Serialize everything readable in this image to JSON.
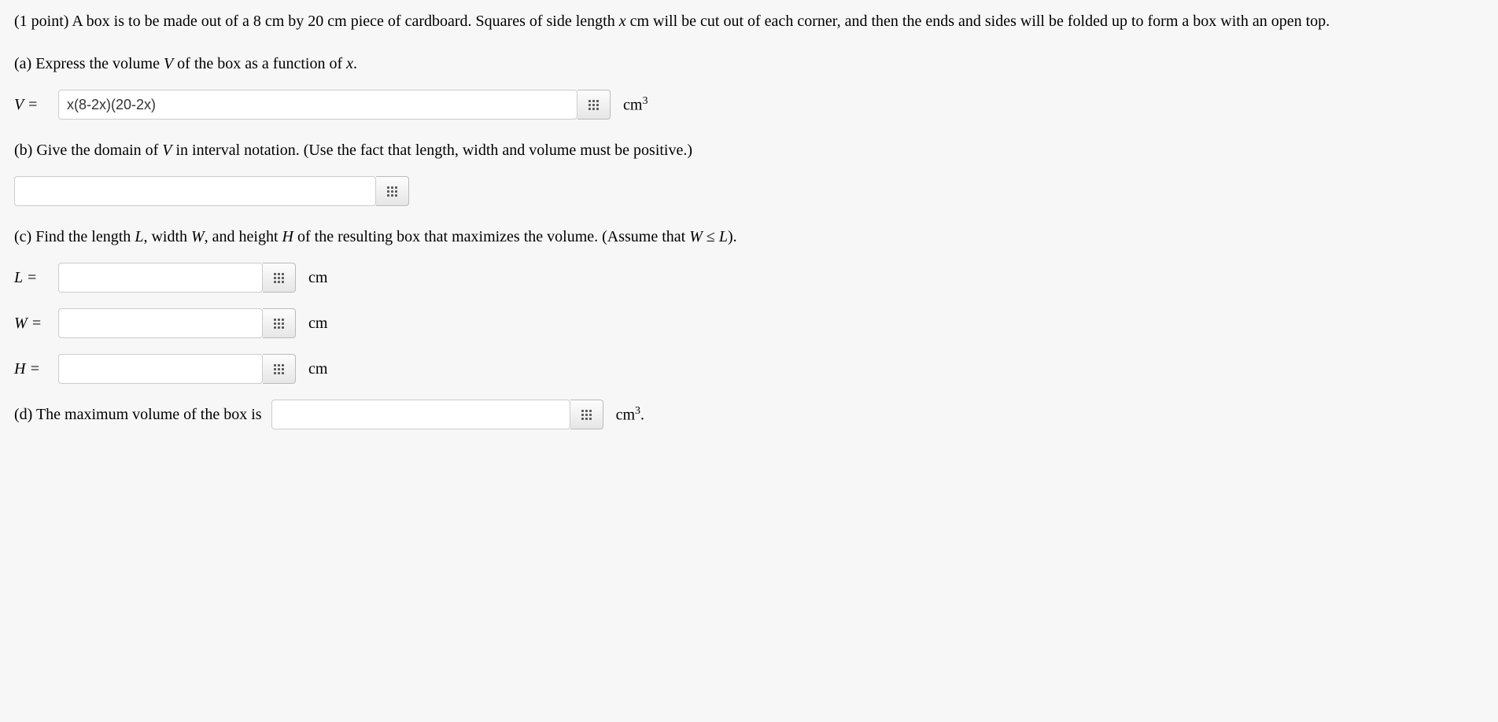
{
  "problem": {
    "intro": "(1 point) A box is to be made out of a 8 cm by 20 cm piece of cardboard. Squares of side length x cm will be cut out of each corner, and then the ends and sides will be folded up to form a box with an open top.",
    "part_a": "(a) Express the volume V of the box as a function of x.",
    "part_b": "(b) Give the domain of V in interval notation. (Use the fact that length, width and volume must be positive.)",
    "part_c": "(c) Find the length L, width W, and height H of the resulting box that maximizes the volume. (Assume that W ≤ L).",
    "part_d": "(d) The maximum volume of the box is"
  },
  "labels": {
    "V": "V =",
    "L": "L =",
    "W": "W =",
    "H": "H ="
  },
  "values": {
    "V": "x(8-2x)(20-2x)",
    "domain": "",
    "L": "",
    "W": "",
    "H": "",
    "maxVol": ""
  },
  "units": {
    "cm3": "cm",
    "cm3_sup": "3",
    "cm": "cm",
    "period": "."
  },
  "styling": {
    "background_color": "#f7f7f7",
    "text_color": "#000000",
    "input_border": "#cccccc",
    "button_gradient_top": "#fdfdfd",
    "button_gradient_bottom": "#e6e6e6",
    "font_family_body": "Times New Roman",
    "font_size_body": 20,
    "font_size_input": 18
  }
}
